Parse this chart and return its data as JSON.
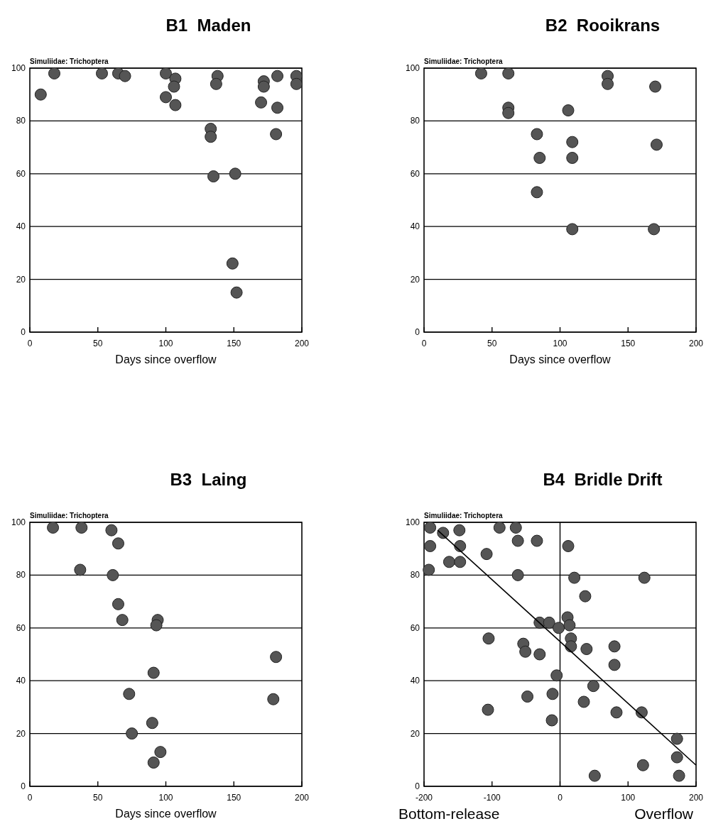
{
  "chart_data": [
    {
      "type": "scatter",
      "title": "B1  Maden",
      "ylabel": "Simuliidae: Trichoptera",
      "xlabel": "Days since overflow",
      "xlim": [
        0,
        200
      ],
      "ylim": [
        0,
        100
      ],
      "xticks": [
        0,
        50,
        100,
        150,
        200
      ],
      "yticks": [
        0,
        20,
        40,
        60,
        80,
        100
      ],
      "grid": "y",
      "marker": "circle",
      "series": [
        {
          "color": "#555555",
          "x": [
            8,
            18,
            53,
            65,
            70,
            100,
            107,
            106,
            100,
            107,
            138,
            137,
            133,
            133,
            135,
            151,
            149,
            152,
            172,
            172,
            170,
            182,
            182,
            181,
            196,
            196
          ],
          "values": [
            90,
            98,
            98,
            98,
            97,
            98,
            96,
            93,
            89,
            86,
            97,
            94,
            77,
            74,
            59,
            60,
            26,
            15,
            95,
            93,
            87,
            97,
            85,
            75,
            97,
            94
          ]
        }
      ]
    },
    {
      "type": "scatter",
      "title": "B2  Rooikrans",
      "ylabel": "Simuliidae: Trichoptera",
      "xlabel": "Days since overflow",
      "xlim": [
        0,
        200
      ],
      "ylim": [
        0,
        100
      ],
      "xticks": [
        0,
        50,
        100,
        150,
        200
      ],
      "yticks": [
        0,
        20,
        40,
        60,
        80,
        100
      ],
      "grid": "y",
      "marker": "circle",
      "series": [
        {
          "color": "#555555",
          "x": [
            42,
            62,
            135,
            135,
            170,
            62,
            62,
            106,
            83,
            109,
            171,
            85,
            109,
            83,
            109,
            169
          ],
          "values": [
            98,
            98,
            97,
            94,
            93,
            85,
            83,
            84,
            75,
            72,
            71,
            66,
            66,
            53,
            39,
            39
          ]
        }
      ]
    },
    {
      "type": "scatter",
      "title": "B3  Laing",
      "ylabel": "Simuliidae: Trichoptera",
      "xlabel": "Days since overflow",
      "xlim": [
        0,
        200
      ],
      "ylim": [
        0,
        100
      ],
      "xticks": [
        0,
        50,
        100,
        150,
        200
      ],
      "yticks": [
        0,
        20,
        40,
        60,
        80,
        100
      ],
      "grid": "y",
      "marker": "circle",
      "series": [
        {
          "color": "#555555",
          "x": [
            17,
            38,
            60,
            65,
            37,
            61,
            65,
            68,
            94,
            93,
            181,
            91,
            73,
            179,
            90,
            75,
            96,
            91
          ],
          "values": [
            98,
            98,
            97,
            92,
            82,
            80,
            69,
            63,
            63,
            61,
            49,
            43,
            35,
            33,
            24,
            20,
            13,
            9
          ]
        }
      ]
    },
    {
      "type": "scatter",
      "title": "B4  Bridle Drift",
      "ylabel": "Simuliidae: Trichoptera",
      "xlim": [
        -200,
        200
      ],
      "ylim": [
        0,
        100
      ],
      "xticks": [
        -200,
        -100,
        0,
        100,
        200
      ],
      "yticks": [
        0,
        20,
        40,
        60,
        80,
        100
      ],
      "grid": "y",
      "marker": "circle",
      "ref_lines": [
        {
          "axis": "x",
          "value": 0,
          "color": "#000000"
        }
      ],
      "annotations": [
        "Bottom-release",
        "Overflow"
      ],
      "series": [
        {
          "color": "#555555",
          "x": [
            -191,
            -172,
            -148,
            -89,
            -65,
            -191,
            -147,
            -62,
            -34,
            12,
            -108,
            -163,
            -147,
            -193,
            -62,
            21,
            124,
            37,
            -30,
            -16,
            -2,
            11,
            14,
            -105,
            16,
            16,
            -54,
            -51,
            -30,
            39,
            80,
            80,
            -5,
            49,
            -48,
            -11,
            35,
            -106,
            83,
            120,
            -12,
            172,
            172,
            122,
            51,
            175
          ],
          "values": [
            98,
            96,
            97,
            98,
            98,
            91,
            91,
            93,
            93,
            91,
            88,
            85,
            85,
            82,
            80,
            79,
            79,
            72,
            62,
            62,
            60,
            64,
            61,
            56,
            56,
            53,
            54,
            51,
            50,
            52,
            53,
            46,
            42,
            38,
            34,
            35,
            32,
            29,
            28,
            28,
            25,
            18,
            11,
            8,
            4,
            4
          ]
        },
        {
          "type": "line",
          "marker": "none",
          "color": "#000000",
          "x": [
            -180,
            200
          ],
          "values": [
            97,
            8
          ]
        }
      ]
    }
  ]
}
